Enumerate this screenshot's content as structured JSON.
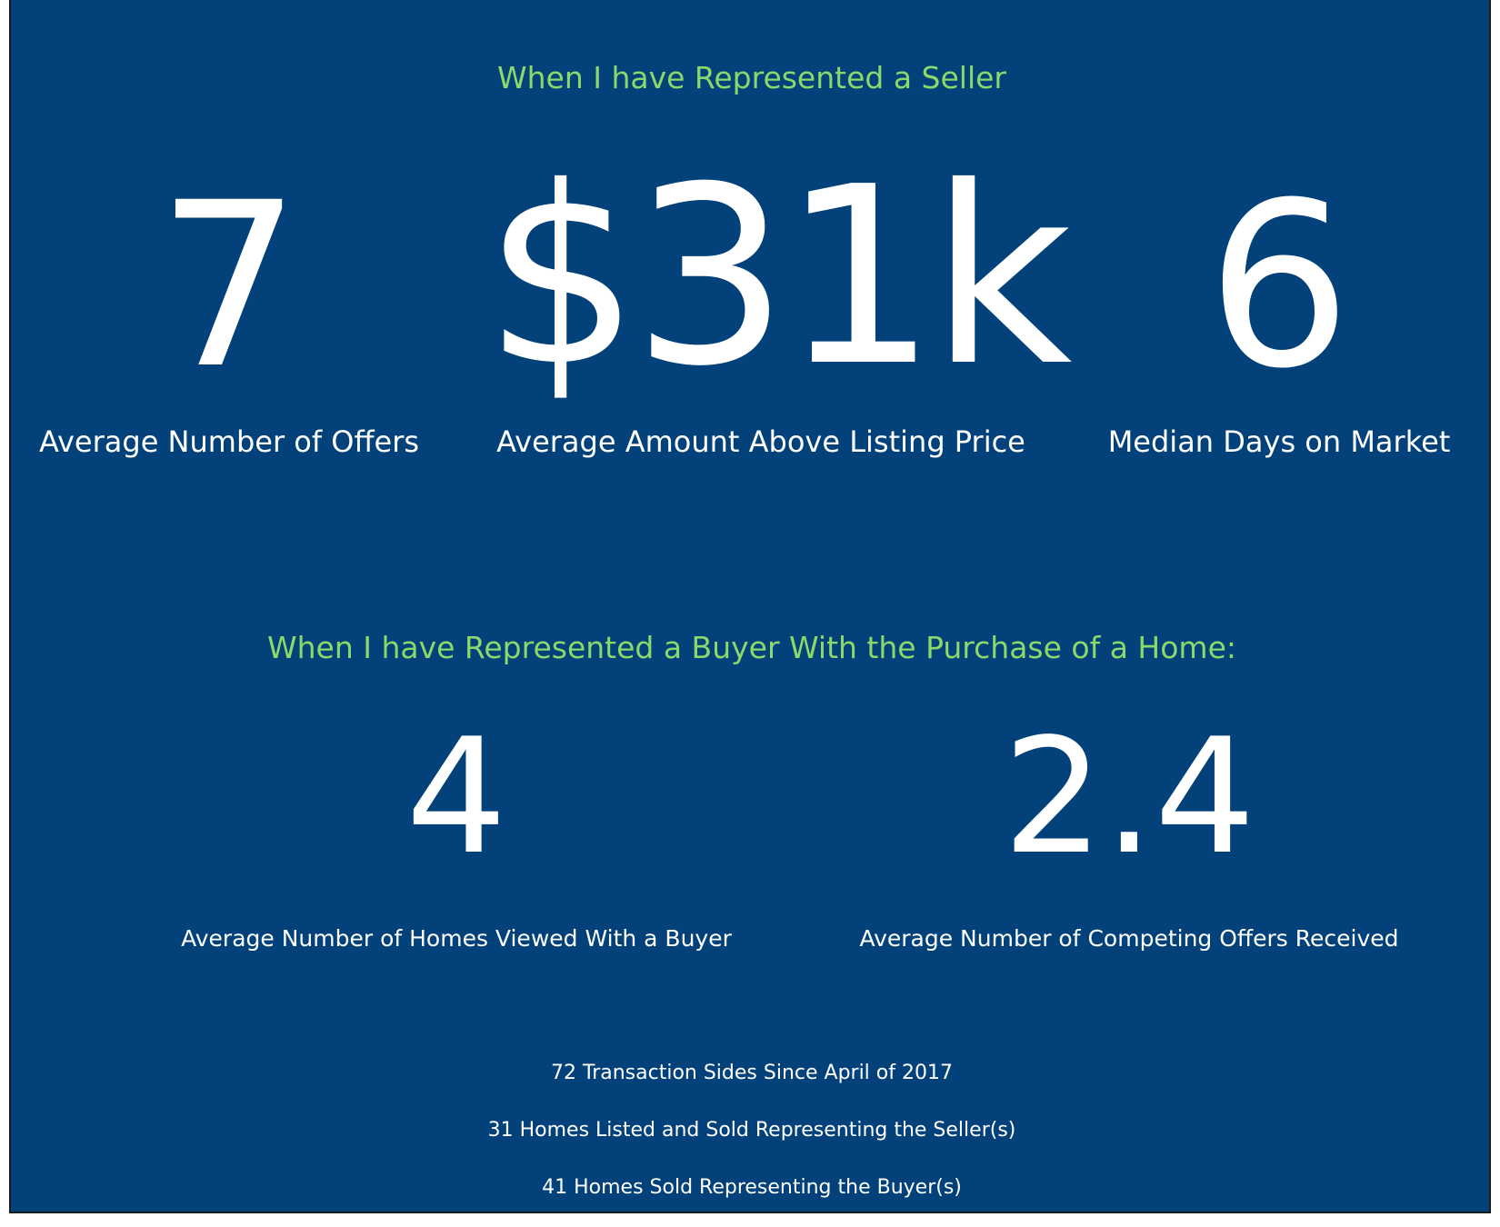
{
  "seller": {
    "heading": "When I have Represented a Seller",
    "stats": [
      {
        "value": "7",
        "label": "Average Number of Offers"
      },
      {
        "value": "$31k",
        "label": "Average Amount Above Listing Price"
      },
      {
        "value": "6",
        "label": "Median Days on Market"
      }
    ]
  },
  "buyer": {
    "heading": "When I have Represented a Buyer With the Purchase of a Home:",
    "stats": [
      {
        "value": "4",
        "label": "Average Number of Homes Viewed With a Buyer"
      },
      {
        "value": "2.4",
        "label": "Average Number of Competing Offers Received"
      }
    ]
  },
  "footer": {
    "lines": [
      "72 Transaction Sides Since April of 2017",
      "31 Homes Listed and Sold Representing the Seller(s)",
      "41 Homes Sold Representing the Buyer(s)"
    ]
  },
  "colors": {
    "background": "#02417a",
    "heading": "#8ad96a",
    "text": "#ffffff"
  }
}
